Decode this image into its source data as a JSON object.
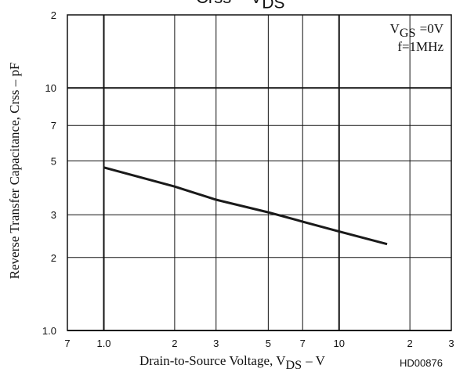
{
  "chart_data": {
    "type": "line",
    "title": [
      "Crss – V",
      "DS"
    ],
    "xlabel": [
      "Drain-to-Source Voltage, V",
      "DS",
      "– V"
    ],
    "ylabel": "Reverse Transfer Capacitance, Crss – pF",
    "annotations": [
      [
        "V",
        "GS",
        "=0V"
      ],
      [
        "f=1MHz"
      ]
    ],
    "code": "HD00876",
    "xscale": "log",
    "yscale": "log",
    "grid": true,
    "xlim": [
      0.7,
      30
    ],
    "ylim": [
      1,
      20
    ],
    "xticks": [
      {
        "value": 0.7,
        "label": "7"
      },
      {
        "value": 1,
        "label": "1.0"
      },
      2,
      3,
      5,
      7,
      10,
      {
        "value": 20,
        "label": "2"
      },
      {
        "value": 30,
        "label": "3"
      }
    ],
    "yticks": [
      {
        "value": 1,
        "label": "1.0"
      },
      2,
      3,
      5,
      7,
      10,
      {
        "value": 20,
        "label": "2"
      }
    ],
    "series": [
      {
        "color": "#1a1a1a",
        "x": [
          1,
          2,
          3,
          5,
          7,
          10,
          16
        ],
        "values": [
          4.7,
          3.92,
          3.46,
          3.07,
          2.81,
          2.56,
          2.27
        ]
      }
    ]
  }
}
